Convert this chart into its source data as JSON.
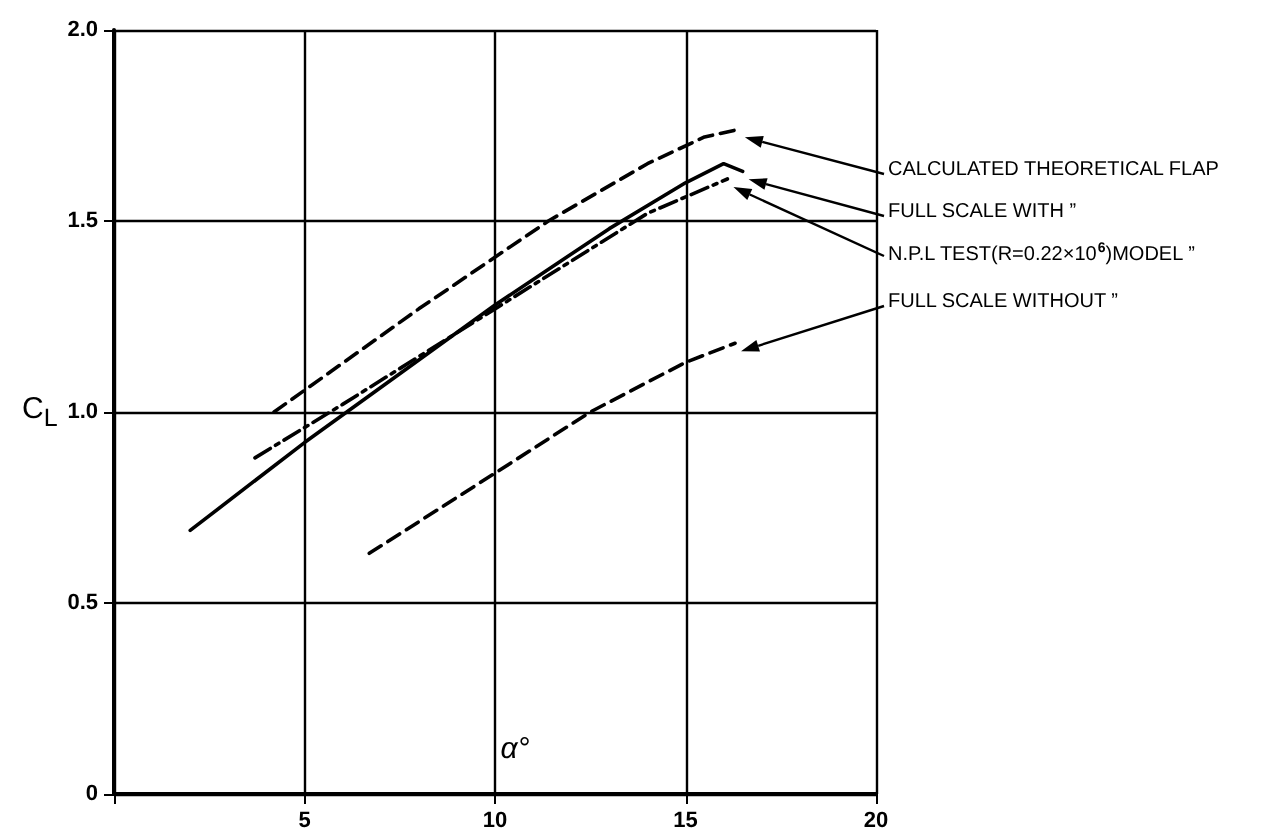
{
  "chart_data": {
    "type": "line",
    "xlabel": "α°",
    "ylabel": "C$_{L}$",
    "xlim": [
      0,
      20
    ],
    "ylim": [
      0,
      2
    ],
    "xticks": [
      {
        "value": 0,
        "label": null
      },
      5,
      10,
      15,
      20
    ],
    "yticks": [
      0,
      {
        "value": 0.5,
        "label": "0.5"
      },
      {
        "value": 1,
        "label": "1.0"
      },
      {
        "value": 1.5,
        "label": "1.5"
      },
      {
        "value": 2,
        "label": "2.0"
      }
    ],
    "grid": true,
    "legend": false,
    "marker": "none",
    "series": [
      {
        "name": "CALCULATED THEORETICAL FLAP",
        "color": "#000000",
        "line_style": "dashed",
        "x": [
          4.2,
          8,
          11.4,
          14,
          15.5,
          16.4
        ],
        "values": [
          1.0,
          1.27,
          1.5,
          1.65,
          1.72,
          1.74
        ]
      },
      {
        "name": "FULL SCALE WITH ”",
        "color": "#000000",
        "line_style": "solid",
        "x": [
          2,
          5,
          10,
          13,
          15,
          16,
          16.5
        ],
        "values": [
          0.69,
          0.92,
          1.28,
          1.48,
          1.6,
          1.65,
          1.63
        ]
      },
      {
        "name": "N.P.L TEST(R=0.22×10$^{6}$)MODEL ”",
        "color": "#000000",
        "line_style": "dashdot",
        "x": [
          3.7,
          6,
          10,
          14,
          16.1
        ],
        "values": [
          0.88,
          1.02,
          1.27,
          1.52,
          1.61
        ]
      },
      {
        "name": "FULL SCALE WITHOUT ”",
        "color": "#000000",
        "line_style": "dashed",
        "x": [
          6.7,
          10,
          12.5,
          15,
          16.3
        ],
        "values": [
          0.63,
          0.84,
          1.0,
          1.13,
          1.18
        ]
      }
    ]
  }
}
